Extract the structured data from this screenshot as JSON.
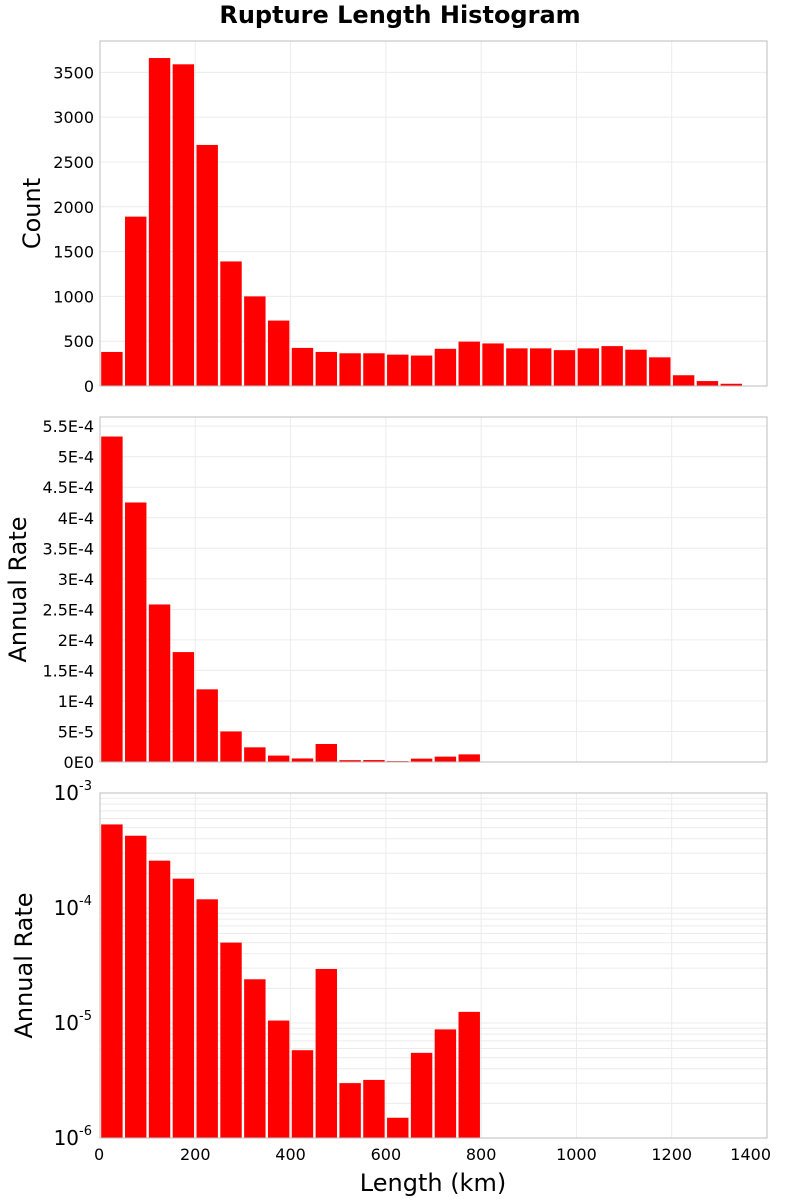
{
  "title": "Rupture Length Histogram",
  "xlabel": "Length (km)",
  "bar_color": "#ff0000",
  "chart_data": [
    {
      "type": "bar",
      "title": "Rupture Length Histogram",
      "xlabel": "",
      "ylabel": "Count",
      "xlim": [
        0,
        1400
      ],
      "ylim": [
        0,
        3850
      ],
      "y_scale": "linear",
      "bin_width": 50,
      "x": [
        25,
        75,
        125,
        175,
        225,
        275,
        325,
        375,
        425,
        475,
        525,
        575,
        625,
        675,
        725,
        775,
        825,
        875,
        925,
        975,
        1025,
        1075,
        1125,
        1175,
        1225,
        1275,
        1325,
        1375
      ],
      "values": [
        380,
        1890,
        3660,
        3590,
        2690,
        1390,
        1000,
        730,
        425,
        380,
        365,
        365,
        350,
        340,
        415,
        495,
        475,
        420,
        420,
        400,
        420,
        445,
        405,
        320,
        120,
        55,
        25,
        5
      ],
      "ytick_values": [
        0,
        500,
        1000,
        1500,
        2000,
        2500,
        3000,
        3500
      ],
      "ytick_labels": [
        "0",
        "500",
        "1000",
        "1500",
        "2000",
        "2500",
        "3000",
        "3500"
      ],
      "grid": true
    },
    {
      "type": "bar",
      "xlabel": "",
      "ylabel": "Annual Rate",
      "xlim": [
        0,
        1400
      ],
      "ylim": [
        0,
        0.000565
      ],
      "y_scale": "linear",
      "bin_width": 50,
      "x": [
        25,
        75,
        125,
        175,
        225,
        275,
        325,
        375,
        425,
        475,
        525,
        575,
        625,
        675,
        725,
        775
      ],
      "values": [
        0.000533,
        0.000425,
        0.000258,
        0.00018,
        0.000119,
        5e-05,
        2.4e-05,
        1.05e-05,
        5.8e-06,
        2.95e-05,
        3e-06,
        3.2e-06,
        1.5e-06,
        5.5e-06,
        8.8e-06,
        1.25e-05
      ],
      "ytick_values": [
        0,
        5e-05,
        0.0001,
        0.00015,
        0.0002,
        0.00025,
        0.0003,
        0.00035,
        0.0004,
        0.00045,
        0.0005,
        0.00055
      ],
      "ytick_labels": [
        "0E0",
        "5E-5",
        "1E-4",
        "1.5E-4",
        "2E-4",
        "2.5E-4",
        "3E-4",
        "3.5E-4",
        "4E-4",
        "4.5E-4",
        "5E-4",
        "5.5E-4"
      ],
      "grid": true
    },
    {
      "type": "bar",
      "xlabel": "Length (km)",
      "ylabel": "Annual Rate",
      "xlim": [
        0,
        1400
      ],
      "ylim": [
        1e-06,
        0.001
      ],
      "y_scale": "log",
      "bin_width": 50,
      "x": [
        25,
        75,
        125,
        175,
        225,
        275,
        325,
        375,
        425,
        475,
        525,
        575,
        625,
        675,
        725,
        775
      ],
      "values": [
        0.000533,
        0.000425,
        0.000258,
        0.00018,
        0.000119,
        5e-05,
        2.4e-05,
        1.05e-05,
        5.8e-06,
        2.95e-05,
        3e-06,
        3.2e-06,
        1.5e-06,
        5.5e-06,
        8.8e-06,
        1.25e-05
      ],
      "ytick_labels": [
        {
          "base": "10",
          "exp": "-6"
        },
        {
          "base": "10",
          "exp": "-5"
        },
        {
          "base": "10",
          "exp": "-4"
        },
        {
          "base": "10",
          "exp": "-3"
        }
      ],
      "xtick_values": [
        0,
        200,
        400,
        600,
        800,
        1000,
        1200,
        1400
      ],
      "xtick_labels": [
        "0",
        "200",
        "400",
        "600",
        "800",
        "1000",
        "1200",
        "1400"
      ],
      "grid": true
    }
  ]
}
